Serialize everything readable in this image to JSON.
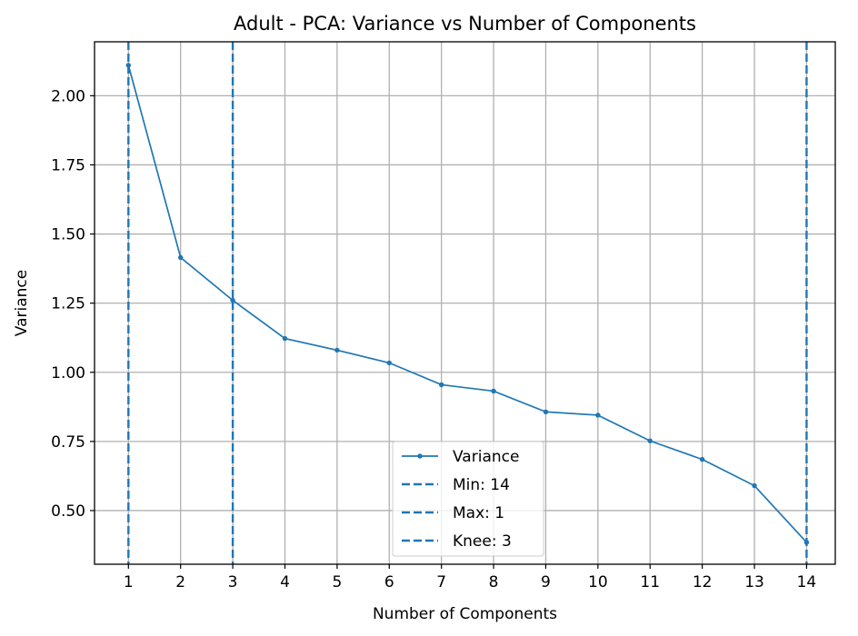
{
  "chart_data": {
    "type": "line",
    "title": "Adult - PCA: Variance vs Number of Components",
    "xlabel": "Number of Components",
    "ylabel": "Variance",
    "x": [
      1,
      2,
      3,
      4,
      5,
      6,
      7,
      8,
      9,
      10,
      11,
      12,
      13,
      14
    ],
    "series": [
      {
        "name": "Variance",
        "values": [
          2.11,
          1.415,
          1.26,
          1.122,
          1.08,
          1.034,
          0.955,
          0.932,
          0.857,
          0.845,
          0.752,
          0.685,
          0.59,
          0.385
        ],
        "color": "#1f77b4",
        "marker": "dot"
      }
    ],
    "vlines": [
      {
        "name": "Min: 14",
        "x": 14,
        "style": "dashed",
        "color": "#1f77b4"
      },
      {
        "name": "Max: 1",
        "x": 1,
        "style": "dashed",
        "color": "#1f77b4"
      },
      {
        "name": "Knee: 3",
        "x": 3,
        "style": "dashed",
        "color": "#1f77b4"
      }
    ],
    "xticks": [
      "1",
      "2",
      "3",
      "4",
      "5",
      "6",
      "7",
      "8",
      "9",
      "10",
      "11",
      "12",
      "13",
      "14"
    ],
    "yticks": [
      "0.50",
      "0.75",
      "1.00",
      "1.25",
      "1.50",
      "1.75",
      "2.00"
    ],
    "xlim": [
      0.35,
      14.55
    ],
    "ylim": [
      0.306,
      2.195
    ],
    "grid": true,
    "legend_position": "bottom-center"
  }
}
